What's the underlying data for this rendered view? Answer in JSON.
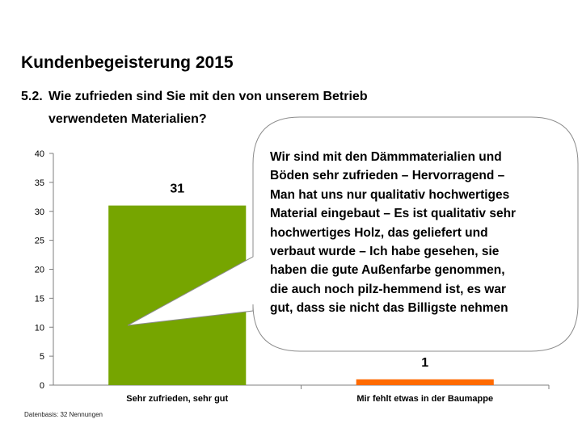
{
  "slide": {
    "title": "Kundenbegeisterung 2015",
    "question_number": "5.2.",
    "question_line1": "Wie zufrieden sind Sie mit den von unserem Betrieb",
    "question_line2": "verwendeten Materialien?",
    "footnote": "Datenbasis: 32 Nennungen"
  },
  "speech_bubble": {
    "lines": [
      "Wir sind mit den Dämmmaterialien und",
      "Böden sehr zufrieden – Hervorragend –",
      "Man hat uns nur qualitativ hochwertiges",
      "Material eingebaut – Es ist qualitativ sehr",
      "hochwertiges Holz, das geliefert und",
      "verbaut wurde – Ich habe gesehen, sie",
      "haben die gute Außenfarbe genommen,",
      "die auch noch pilz-hemmend ist, es war",
      "gut, dass sie nicht das Billigste nehmen"
    ]
  },
  "chart_data": {
    "type": "bar",
    "categories": [
      "Sehr zufrieden, sehr gut",
      "Mir fehlt etwas in der Baumappe"
    ],
    "values": [
      31,
      1
    ],
    "data_labels": [
      "31",
      "1"
    ],
    "colors": [
      "#76a500",
      "#ff6a00"
    ],
    "ylim": [
      0,
      40
    ],
    "yticks": [
      0,
      5,
      10,
      15,
      20,
      25,
      30,
      35,
      40
    ],
    "title": "",
    "xlabel": "",
    "ylabel": "",
    "grid": false
  }
}
